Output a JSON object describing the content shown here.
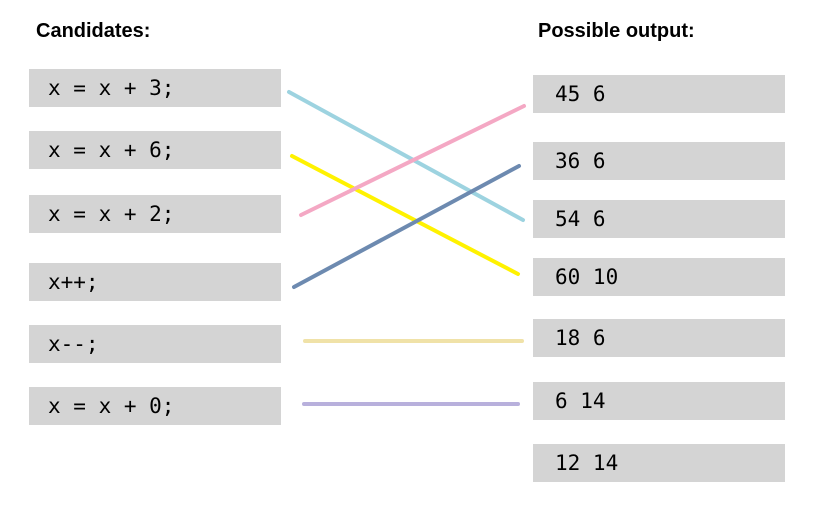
{
  "candidates_heading": "Candidates:",
  "outputs_heading": "Possible output:",
  "candidates": [
    "x = x + 3;",
    "x = x + 6;",
    "x = x + 2;",
    "x++;",
    "x--;",
    "x = x + 0;"
  ],
  "outputs": [
    "45 6",
    "36 6",
    "54 6",
    "60 10",
    "18 6",
    "6 14",
    "12 14"
  ],
  "connections": [
    {
      "candidate": 0,
      "output": 2,
      "color": "#9dd3e0"
    },
    {
      "candidate": 1,
      "output": 3,
      "color": "#fff200"
    },
    {
      "candidate": 2,
      "output": 0,
      "color": "#f4a8c4"
    },
    {
      "candidate": 3,
      "output": 1,
      "color": "#6d8ab0"
    },
    {
      "candidate": 4,
      "output": 4,
      "color": "#f0e2a8"
    },
    {
      "candidate": 5,
      "output": 5,
      "color": "#b8b0dc"
    }
  ]
}
